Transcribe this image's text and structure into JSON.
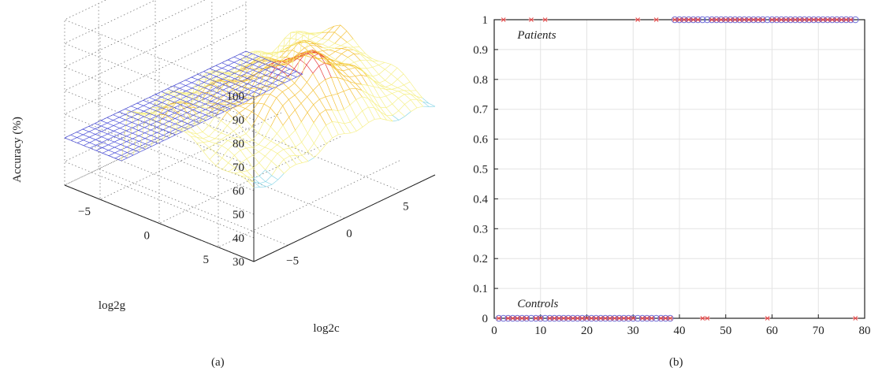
{
  "chart_data": [
    {
      "type": "surface",
      "caption": "(a)",
      "zlabel": "Accuracy (%)",
      "xlabel": "log2c",
      "ylabel": "log2g",
      "zlim": [
        30,
        100
      ],
      "zticks": [
        30,
        40,
        50,
        60,
        70,
        80,
        90,
        100
      ],
      "xticks": [
        -5,
        0,
        5
      ],
      "yticks": [
        5,
        0,
        -5
      ],
      "xlim": [
        -8,
        8
      ],
      "ylim": [
        -8,
        8
      ],
      "grid": true,
      "colormap": [
        "#4b4fd8",
        "#8fd8e8",
        "#f6f08a",
        "#f4c23a",
        "#e8393a"
      ],
      "surface_summary": {
        "baseline_accuracy": 50,
        "plateau_accuracy_range": [
          60,
          75
        ],
        "peak_accuracy_range": [
          88,
          98
        ]
      }
    },
    {
      "type": "scatter",
      "caption": "(b)",
      "xlim": [
        0,
        80
      ],
      "ylim": [
        0,
        1
      ],
      "xticks": [
        0,
        10,
        20,
        30,
        40,
        50,
        60,
        70,
        80
      ],
      "yticks": [
        0,
        0.1,
        0.2,
        0.3,
        0.4,
        0.5,
        0.6,
        0.7,
        0.8,
        0.9,
        1
      ],
      "xtick_labels": [
        "0",
        "10",
        "20",
        "30",
        "40",
        "50",
        "60",
        "70",
        "80"
      ],
      "ytick_labels": [
        "0",
        "0.1",
        "0.2",
        "0.3",
        "0.4",
        "0.5",
        "0.6",
        "0.7",
        "0.8",
        "0.9",
        "1"
      ],
      "grid": true,
      "annotations": [
        {
          "text": "Patients",
          "x": 5,
          "y": 0.95
        },
        {
          "text": "Controls",
          "x": 5,
          "y": 0.05
        }
      ],
      "series": [
        {
          "marker": "o",
          "color": "#6b6bd8",
          "points": [
            [
              1,
              0
            ],
            [
              2,
              0
            ],
            [
              3,
              0
            ],
            [
              4,
              0
            ],
            [
              5,
              0
            ],
            [
              6,
              0
            ],
            [
              7,
              0
            ],
            [
              8,
              0
            ],
            [
              9,
              0
            ],
            [
              10,
              0
            ],
            [
              11,
              0
            ],
            [
              12,
              0
            ],
            [
              13,
              0
            ],
            [
              14,
              0
            ],
            [
              15,
              0
            ],
            [
              16,
              0
            ],
            [
              17,
              0
            ],
            [
              18,
              0
            ],
            [
              19,
              0
            ],
            [
              20,
              0
            ],
            [
              21,
              0
            ],
            [
              22,
              0
            ],
            [
              23,
              0
            ],
            [
              24,
              0
            ],
            [
              25,
              0
            ],
            [
              26,
              0
            ],
            [
              27,
              0
            ],
            [
              28,
              0
            ],
            [
              29,
              0
            ],
            [
              30,
              0
            ],
            [
              31,
              0
            ],
            [
              32,
              0
            ],
            [
              33,
              0
            ],
            [
              34,
              0
            ],
            [
              35,
              0
            ],
            [
              36,
              0
            ],
            [
              37,
              0
            ],
            [
              38,
              0
            ],
            [
              39,
              1
            ],
            [
              40,
              1
            ],
            [
              41,
              1
            ],
            [
              42,
              1
            ],
            [
              43,
              1
            ],
            [
              44,
              1
            ],
            [
              45,
              1
            ],
            [
              46,
              1
            ],
            [
              47,
              1
            ],
            [
              48,
              1
            ],
            [
              49,
              1
            ],
            [
              50,
              1
            ],
            [
              51,
              1
            ],
            [
              52,
              1
            ],
            [
              53,
              1
            ],
            [
              54,
              1
            ],
            [
              55,
              1
            ],
            [
              56,
              1
            ],
            [
              57,
              1
            ],
            [
              58,
              1
            ],
            [
              59,
              1
            ],
            [
              60,
              1
            ],
            [
              61,
              1
            ],
            [
              62,
              1
            ],
            [
              63,
              1
            ],
            [
              64,
              1
            ],
            [
              65,
              1
            ],
            [
              66,
              1
            ],
            [
              67,
              1
            ],
            [
              68,
              1
            ],
            [
              69,
              1
            ],
            [
              70,
              1
            ],
            [
              71,
              1
            ],
            [
              72,
              1
            ],
            [
              73,
              1
            ],
            [
              74,
              1
            ],
            [
              75,
              1
            ],
            [
              76,
              1
            ],
            [
              77,
              1
            ],
            [
              78,
              1
            ]
          ]
        },
        {
          "marker": "*",
          "color": "#e04848",
          "points": [
            [
              1,
              0
            ],
            [
              2,
              1
            ],
            [
              3,
              0
            ],
            [
              4,
              0
            ],
            [
              5,
              0
            ],
            [
              6,
              0
            ],
            [
              7,
              0
            ],
            [
              8,
              1
            ],
            [
              9,
              0
            ],
            [
              10,
              0
            ],
            [
              11,
              1
            ],
            [
              12,
              0
            ],
            [
              13,
              0
            ],
            [
              14,
              0
            ],
            [
              15,
              0
            ],
            [
              16,
              0
            ],
            [
              17,
              0
            ],
            [
              18,
              0
            ],
            [
              19,
              0
            ],
            [
              20,
              0
            ],
            [
              21,
              0
            ],
            [
              22,
              0
            ],
            [
              23,
              0
            ],
            [
              24,
              0
            ],
            [
              25,
              0
            ],
            [
              26,
              0
            ],
            [
              27,
              0
            ],
            [
              28,
              0
            ],
            [
              29,
              0
            ],
            [
              30,
              0
            ],
            [
              31,
              1
            ],
            [
              32,
              0
            ],
            [
              33,
              0
            ],
            [
              34,
              0
            ],
            [
              35,
              1
            ],
            [
              36,
              0
            ],
            [
              37,
              0
            ],
            [
              38,
              0
            ],
            [
              39,
              1
            ],
            [
              40,
              1
            ],
            [
              41,
              1
            ],
            [
              42,
              1
            ],
            [
              43,
              1
            ],
            [
              44,
              1
            ],
            [
              45,
              0
            ],
            [
              46,
              0
            ],
            [
              47,
              1
            ],
            [
              48,
              1
            ],
            [
              49,
              1
            ],
            [
              50,
              1
            ],
            [
              51,
              1
            ],
            [
              52,
              1
            ],
            [
              53,
              1
            ],
            [
              54,
              1
            ],
            [
              55,
              1
            ],
            [
              56,
              1
            ],
            [
              57,
              1
            ],
            [
              58,
              1
            ],
            [
              59,
              0
            ],
            [
              60,
              1
            ],
            [
              61,
              1
            ],
            [
              62,
              1
            ],
            [
              63,
              1
            ],
            [
              64,
              1
            ],
            [
              65,
              1
            ],
            [
              66,
              1
            ],
            [
              67,
              1
            ],
            [
              68,
              1
            ],
            [
              69,
              1
            ],
            [
              70,
              1
            ],
            [
              71,
              1
            ],
            [
              72,
              1
            ],
            [
              73,
              1
            ],
            [
              74,
              1
            ],
            [
              75,
              1
            ],
            [
              76,
              1
            ],
            [
              77,
              1
            ],
            [
              78,
              0
            ]
          ]
        }
      ]
    }
  ]
}
